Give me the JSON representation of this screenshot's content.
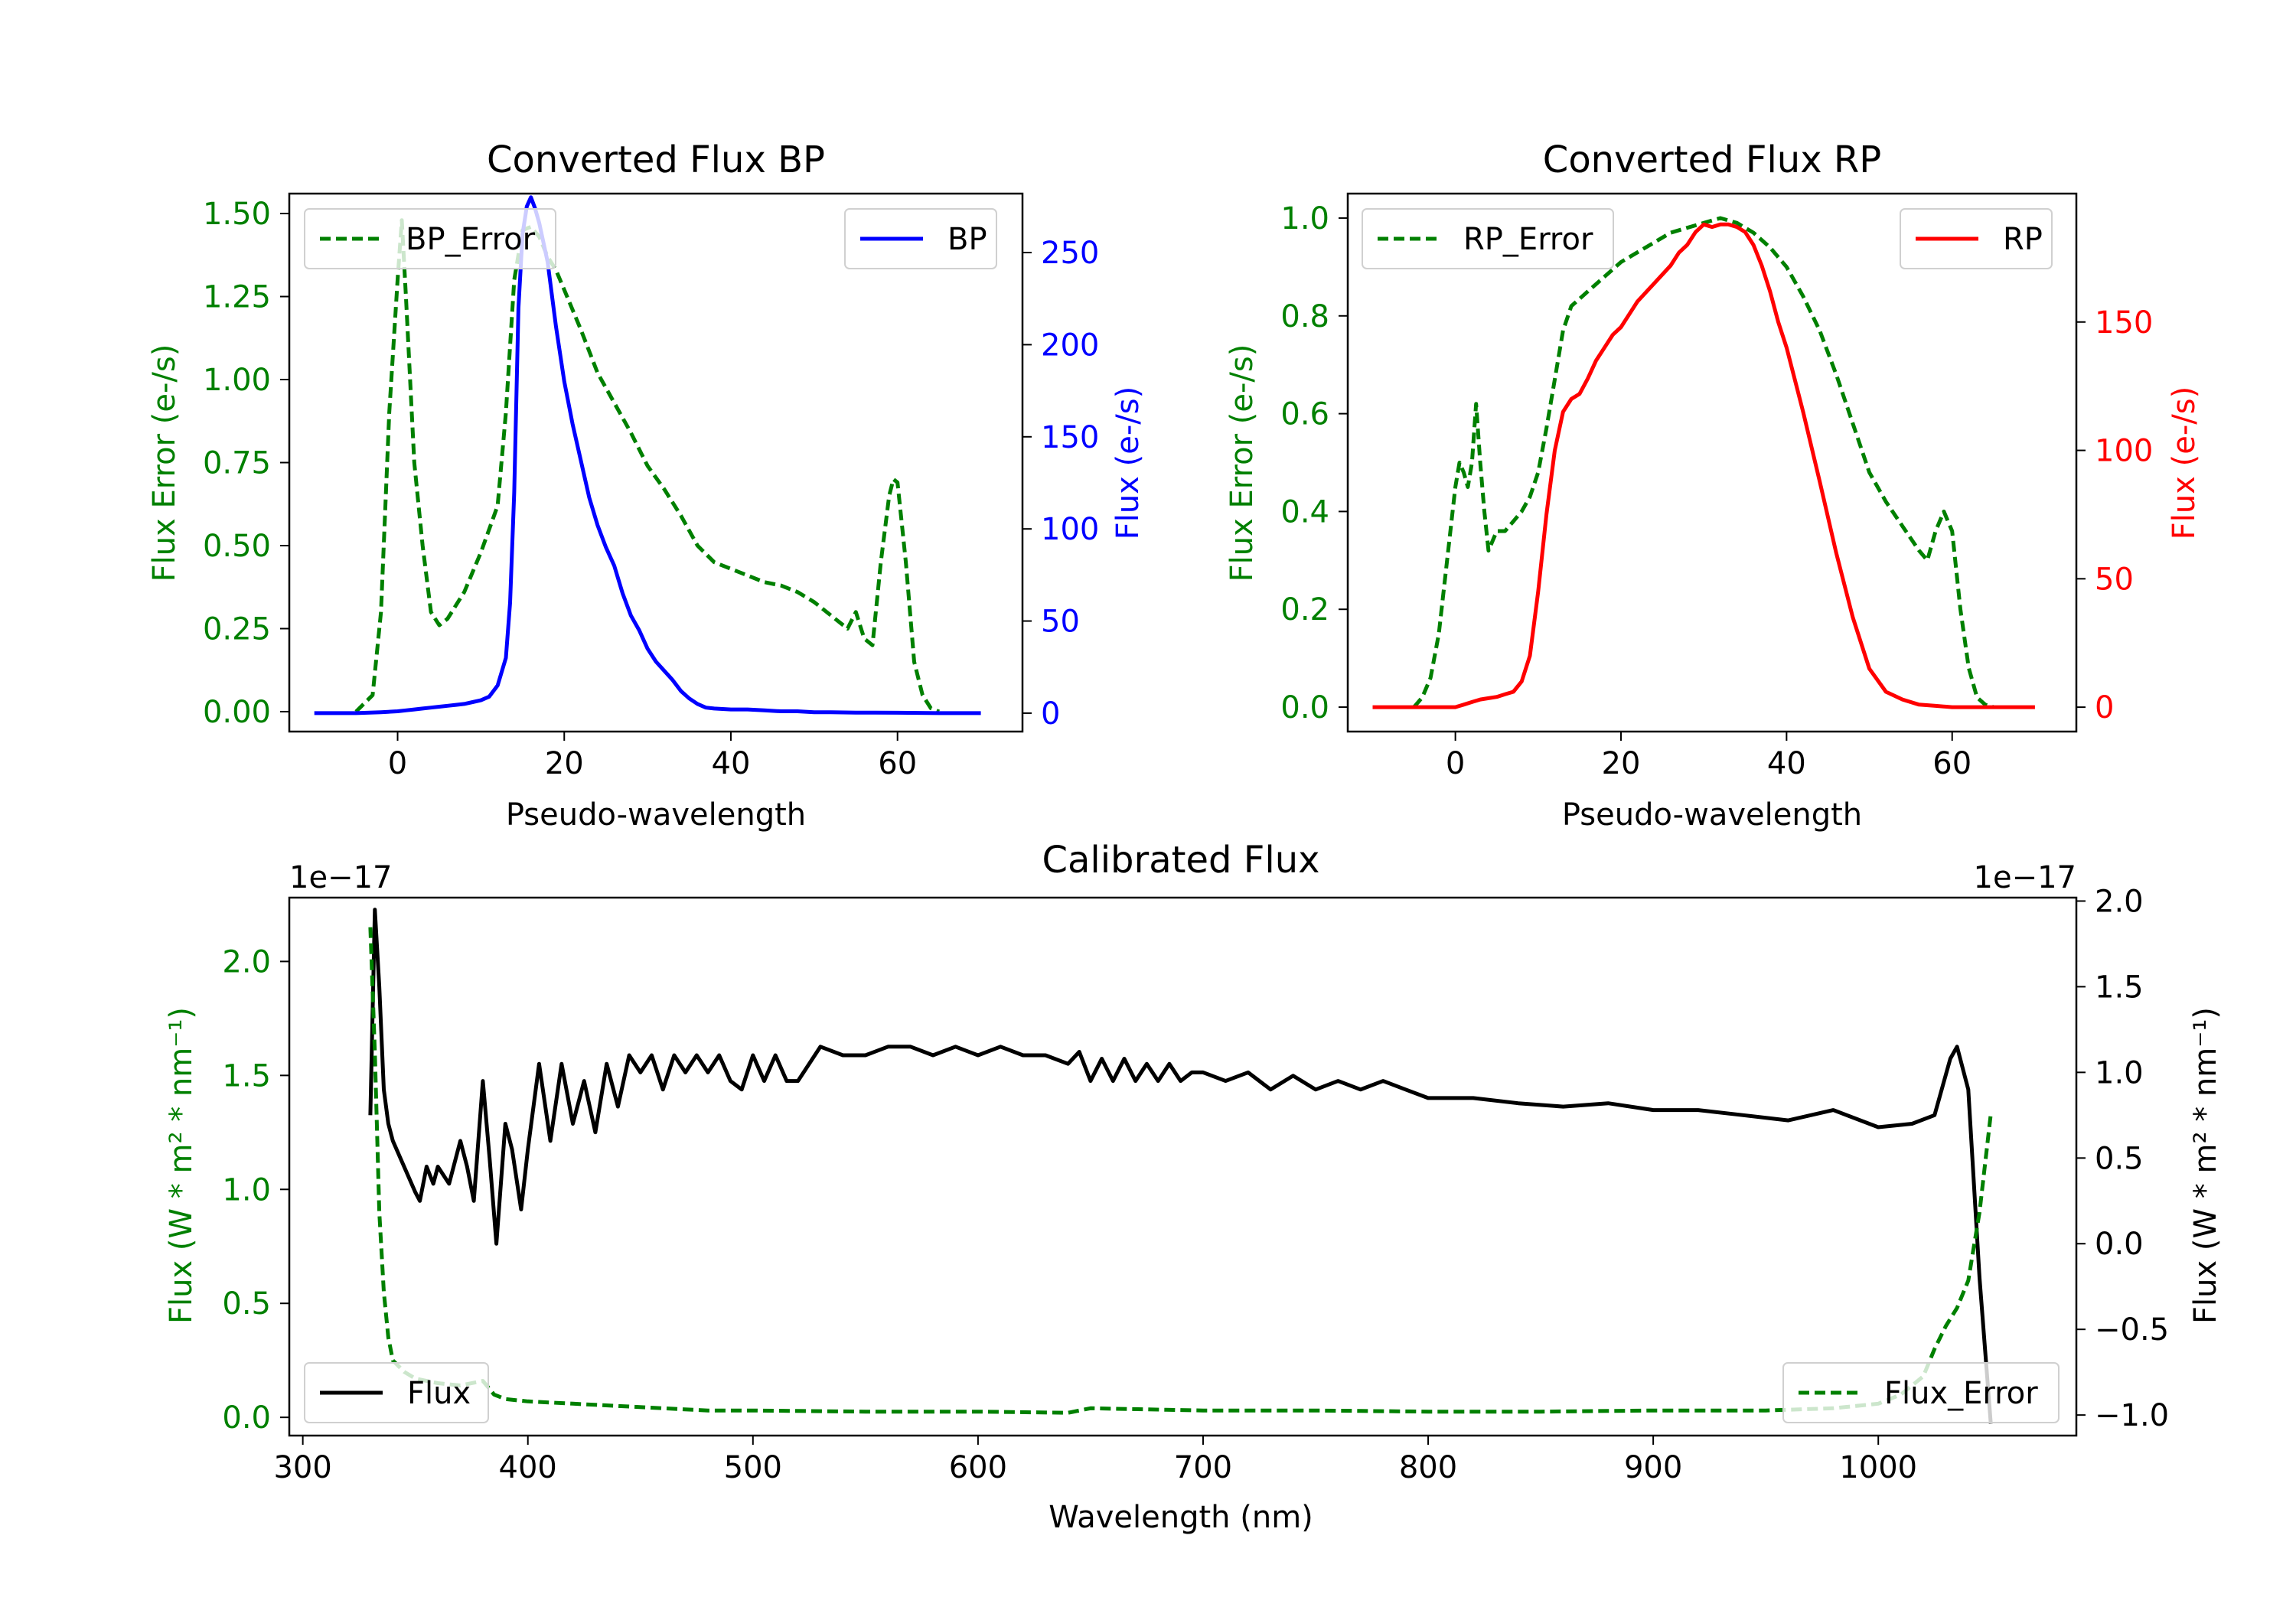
{
  "colors": {
    "error": "#008000",
    "bp": "#0000ff",
    "rp": "#ff0000",
    "flux": "#000000"
  },
  "chart_data": [
    {
      "id": "bp",
      "type": "line",
      "title": "Converted Flux BP",
      "xlabel": "Pseudo-wavelength",
      "ylabel_left": "Flux Error (e-/s)",
      "ylabel_right": "Flux (e-/s)",
      "xlim": [
        -13,
        75
      ],
      "ylim_left": [
        -0.06,
        1.56
      ],
      "ylim_right": [
        -10,
        282
      ],
      "xticks": [
        0,
        20,
        40,
        60
      ],
      "yticks_left": [
        0.0,
        0.25,
        0.5,
        0.75,
        1.0,
        1.25,
        1.5
      ],
      "yticks_left_labels": [
        "0.00",
        "0.25",
        "0.50",
        "0.75",
        "1.00",
        "1.25",
        "1.50"
      ],
      "yticks_right": [
        0,
        50,
        100,
        150,
        200,
        250
      ],
      "yticks_right_labels": [
        "0",
        "50",
        "100",
        "150",
        "200",
        "250"
      ],
      "legend_left": "top-left",
      "legend_right": "top-right",
      "series": [
        {
          "name": "BP_Error",
          "axis": "left",
          "color": "error",
          "dashed": true,
          "x": [
            -5,
            -3,
            -2,
            -1,
            0,
            0.5,
            1,
            2,
            3,
            4,
            5,
            6,
            7,
            8,
            9,
            10,
            11,
            12,
            13,
            14,
            15,
            16,
            17,
            18,
            19,
            20,
            22,
            24,
            26,
            28,
            30,
            32,
            34,
            36,
            38,
            40,
            42,
            44,
            46,
            48,
            50,
            52,
            54,
            55,
            56,
            57,
            58,
            59,
            59.5,
            60,
            61,
            62,
            63,
            64,
            65
          ],
          "y": [
            0.0,
            0.05,
            0.3,
            0.9,
            1.3,
            1.48,
            1.25,
            0.75,
            0.5,
            0.3,
            0.26,
            0.28,
            0.32,
            0.36,
            0.42,
            0.48,
            0.55,
            0.62,
            0.9,
            1.3,
            1.45,
            1.46,
            1.43,
            1.37,
            1.33,
            1.27,
            1.15,
            1.02,
            0.93,
            0.84,
            0.74,
            0.67,
            0.59,
            0.5,
            0.45,
            0.43,
            0.41,
            0.39,
            0.38,
            0.36,
            0.33,
            0.29,
            0.25,
            0.3,
            0.22,
            0.2,
            0.45,
            0.65,
            0.7,
            0.69,
            0.45,
            0.15,
            0.05,
            0.01,
            0.0
          ]
        },
        {
          "name": "BP",
          "axis": "right",
          "color": "bp",
          "dashed": false,
          "x": [
            -10,
            -5,
            -2,
            0,
            1,
            2,
            3,
            4,
            5,
            6,
            7,
            8,
            9,
            10,
            11,
            12,
            13,
            13.5,
            14,
            14.5,
            15,
            15.5,
            16,
            16.5,
            17,
            18,
            19,
            20,
            21,
            22,
            23,
            24,
            25,
            26,
            27,
            28,
            29,
            30,
            31,
            32,
            33,
            34,
            35,
            36,
            37,
            38,
            40,
            42,
            44,
            46,
            48,
            50,
            52,
            55,
            60,
            65,
            70
          ],
          "y": [
            0,
            0,
            0.5,
            1,
            1.5,
            2,
            2.5,
            3,
            3.5,
            4,
            4.5,
            5,
            6,
            7,
            9,
            15,
            30,
            60,
            120,
            220,
            260,
            275,
            280,
            274,
            266,
            245,
            210,
            180,
            157,
            137,
            117,
            102,
            90,
            80,
            65,
            53,
            45,
            35,
            28,
            23,
            18,
            12,
            8,
            5,
            3,
            2.5,
            2,
            2,
            1.5,
            1,
            1,
            0.5,
            0.5,
            0.3,
            0.2,
            0,
            0
          ]
        }
      ]
    },
    {
      "id": "rp",
      "type": "line",
      "title": "Converted Flux RP",
      "xlabel": "Pseudo-wavelength",
      "ylabel_left": "Flux Error (e-/s)",
      "ylabel_right": "Flux (e-/s)",
      "xlim": [
        -13,
        75
      ],
      "ylim_left": [
        -0.05,
        1.05
      ],
      "ylim_right": [
        -9.5,
        200
      ],
      "xticks": [
        0,
        20,
        40,
        60
      ],
      "yticks_left": [
        0.0,
        0.2,
        0.4,
        0.6,
        0.8,
        1.0
      ],
      "yticks_left_labels": [
        "0.0",
        "0.2",
        "0.4",
        "0.6",
        "0.8",
        "1.0"
      ],
      "yticks_right": [
        0,
        50,
        100,
        150
      ],
      "yticks_right_labels": [
        "0",
        "50",
        "100",
        "150"
      ],
      "legend_left": "top-left",
      "legend_right": "top-right",
      "series": [
        {
          "name": "RP_Error",
          "axis": "left",
          "color": "error",
          "dashed": true,
          "x": [
            -5,
            -4,
            -3,
            -2,
            -1,
            0,
            0.5,
            1,
            1.5,
            2,
            2.5,
            3,
            3.5,
            4,
            5,
            6,
            7,
            8,
            9,
            10,
            11,
            12,
            13,
            14,
            16,
            18,
            20,
            22,
            24,
            26,
            28,
            30,
            32,
            34,
            36,
            38,
            40,
            42,
            44,
            46,
            48,
            50,
            52,
            54,
            56,
            57,
            58,
            59,
            60,
            61,
            62,
            63,
            64,
            65
          ],
          "y": [
            0.0,
            0.02,
            0.06,
            0.15,
            0.3,
            0.45,
            0.5,
            0.48,
            0.45,
            0.5,
            0.62,
            0.5,
            0.4,
            0.32,
            0.36,
            0.36,
            0.38,
            0.4,
            0.43,
            0.48,
            0.57,
            0.67,
            0.77,
            0.82,
            0.85,
            0.88,
            0.91,
            0.93,
            0.95,
            0.97,
            0.98,
            0.99,
            1.0,
            0.99,
            0.97,
            0.94,
            0.9,
            0.84,
            0.77,
            0.68,
            0.58,
            0.48,
            0.42,
            0.37,
            0.32,
            0.3,
            0.36,
            0.4,
            0.36,
            0.2,
            0.08,
            0.02,
            0.005,
            0.0
          ]
        },
        {
          "name": "RP",
          "axis": "right",
          "color": "rp",
          "dashed": false,
          "x": [
            -10,
            -5,
            -2,
            0,
            1,
            2,
            3,
            4,
            5,
            6,
            7,
            8,
            9,
            10,
            11,
            12,
            13,
            14,
            15,
            16,
            17,
            18,
            19,
            20,
            21,
            22,
            24,
            26,
            27,
            28,
            29,
            30,
            31,
            32,
            33,
            34,
            35,
            36,
            37,
            38,
            39,
            40,
            42,
            44,
            46,
            48,
            50,
            52,
            54,
            56,
            58,
            60,
            65,
            70
          ],
          "y": [
            0,
            0,
            0,
            0,
            1,
            2,
            3,
            3.5,
            4,
            5,
            6,
            10,
            20,
            45,
            75,
            100,
            115,
            120,
            122,
            128,
            135,
            140,
            145,
            148,
            153,
            158,
            165,
            172,
            177,
            180,
            185,
            188,
            187,
            188,
            188,
            187,
            185,
            180,
            172,
            162,
            150,
            140,
            115,
            88,
            60,
            35,
            15,
            6,
            3,
            1,
            0.5,
            0,
            0,
            0
          ]
        }
      ]
    },
    {
      "id": "cal",
      "type": "line",
      "title": "Calibrated Flux",
      "xlabel": "Wavelength (nm)",
      "ylabel_left": "Flux (W * m² * nm⁻¹)",
      "ylabel_right": "Flux (W * m² * nm⁻¹)",
      "offset_left": "1e−17",
      "offset_right": "1e−17",
      "xlim": [
        294,
        1088
      ],
      "ylim_left": [
        -0.08,
        2.28
      ],
      "ylim_right": [
        -1.12,
        2.02
      ],
      "xticks": [
        300,
        400,
        500,
        600,
        700,
        800,
        900,
        1000
      ],
      "yticks_left": [
        0.0,
        0.5,
        1.0,
        1.5,
        2.0
      ],
      "yticks_left_labels": [
        "0.0",
        "0.5",
        "1.0",
        "1.5",
        "2.0"
      ],
      "yticks_right": [
        -1.0,
        -0.5,
        0.0,
        0.5,
        1.0,
        1.5,
        2.0
      ],
      "yticks_right_labels": [
        "−1.0",
        "−0.5",
        "0.0",
        "0.5",
        "1.0",
        "1.5",
        "2.0"
      ],
      "legend_left": "lower-left",
      "legend_right": "lower-right",
      "series": [
        {
          "name": "Flux",
          "axis": "right",
          "color": "flux",
          "dashed": false,
          "x": [
            330,
            332,
            334,
            336,
            338,
            340,
            345,
            350,
            352,
            355,
            358,
            360,
            365,
            370,
            373,
            376,
            380,
            383,
            386,
            390,
            393,
            397,
            400,
            405,
            410,
            415,
            420,
            425,
            430,
            435,
            440,
            445,
            450,
            455,
            460,
            465,
            470,
            475,
            480,
            485,
            490,
            495,
            500,
            505,
            510,
            515,
            520,
            530,
            540,
            550,
            560,
            570,
            580,
            590,
            600,
            610,
            620,
            630,
            640,
            645,
            650,
            655,
            660,
            665,
            670,
            675,
            680,
            685,
            690,
            695,
            700,
            710,
            720,
            730,
            740,
            750,
            760,
            770,
            780,
            790,
            800,
            820,
            840,
            860,
            880,
            900,
            920,
            940,
            960,
            980,
            1000,
            1015,
            1025,
            1032,
            1035,
            1040,
            1045,
            1050
          ],
          "y": [
            0.75,
            1.95,
            1.5,
            0.9,
            0.7,
            0.6,
            0.45,
            0.3,
            0.25,
            0.45,
            0.35,
            0.45,
            0.35,
            0.6,
            0.45,
            0.25,
            0.95,
            0.5,
            0.0,
            0.7,
            0.55,
            0.2,
            0.55,
            1.05,
            0.6,
            1.05,
            0.7,
            0.95,
            0.65,
            1.05,
            0.8,
            1.1,
            1.0,
            1.1,
            0.9,
            1.1,
            1.0,
            1.1,
            1.0,
            1.1,
            0.95,
            0.9,
            1.1,
            0.95,
            1.1,
            0.95,
            0.95,
            1.15,
            1.1,
            1.1,
            1.15,
            1.15,
            1.1,
            1.15,
            1.1,
            1.15,
            1.1,
            1.1,
            1.05,
            1.12,
            0.95,
            1.08,
            0.95,
            1.08,
            0.95,
            1.05,
            0.95,
            1.05,
            0.95,
            1.0,
            1.0,
            0.95,
            1.0,
            0.9,
            0.98,
            0.9,
            0.95,
            0.9,
            0.95,
            0.9,
            0.85,
            0.85,
            0.82,
            0.8,
            0.82,
            0.78,
            0.78,
            0.75,
            0.72,
            0.78,
            0.68,
            0.7,
            0.75,
            1.08,
            1.15,
            0.9,
            -0.2,
            -1.05
          ]
        },
        {
          "name": "Flux_Error",
          "axis": "left",
          "color": "error",
          "dashed": true,
          "x": [
            330,
            332,
            334,
            336,
            338,
            340,
            345,
            350,
            360,
            370,
            380,
            385,
            390,
            400,
            420,
            440,
            460,
            480,
            500,
            550,
            600,
            640,
            650,
            700,
            750,
            800,
            850,
            900,
            950,
            980,
            1000,
            1010,
            1020,
            1025,
            1030,
            1035,
            1040,
            1045,
            1050
          ],
          "y": [
            2.15,
            1.6,
            0.9,
            0.55,
            0.35,
            0.25,
            0.2,
            0.17,
            0.15,
            0.14,
            0.16,
            0.1,
            0.08,
            0.07,
            0.06,
            0.05,
            0.04,
            0.03,
            0.03,
            0.025,
            0.025,
            0.02,
            0.04,
            0.03,
            0.03,
            0.025,
            0.025,
            0.03,
            0.03,
            0.04,
            0.06,
            0.1,
            0.18,
            0.3,
            0.4,
            0.48,
            0.6,
            0.9,
            1.33
          ]
        }
      ]
    }
  ]
}
